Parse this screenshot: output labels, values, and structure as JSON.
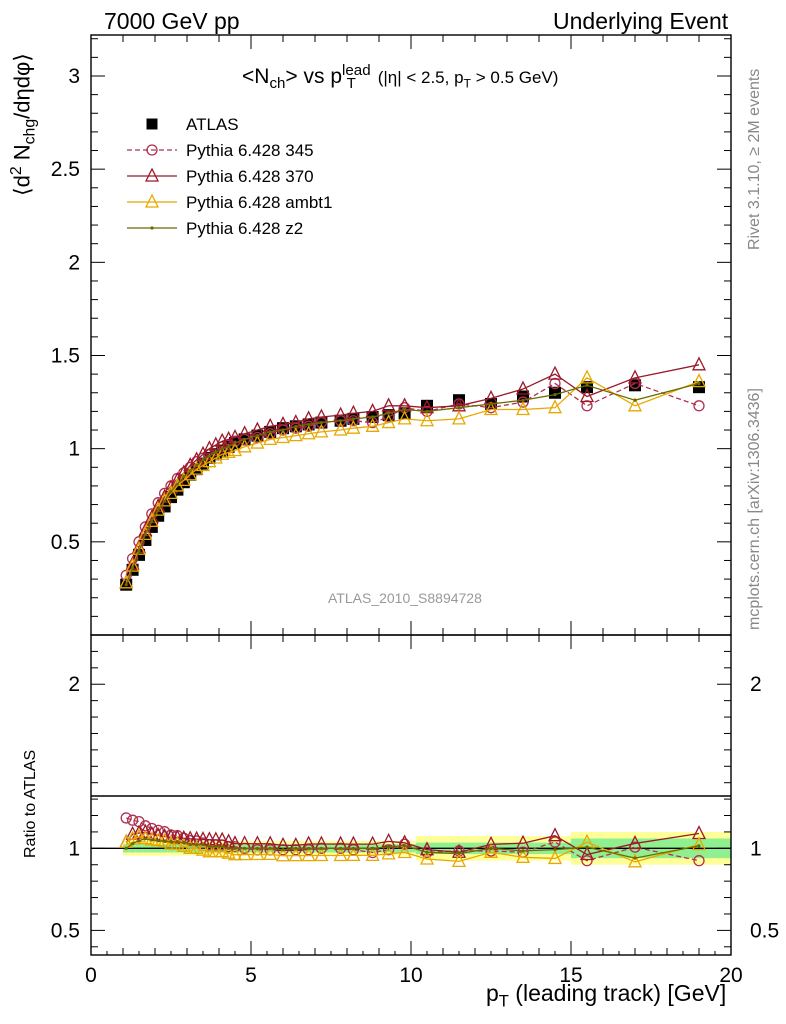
{
  "header": {
    "left": "7000 GeV pp",
    "right": "Underlying Event",
    "side_top": "Rivet 3.1.10, ≥ 2M events",
    "side_bottom": "mcplots.cern.ch [arXiv:1306.3436]"
  },
  "chart_data": [
    {
      "type": "scatter",
      "title_parts": {
        "a": "<N",
        "a_sub": "ch",
        "b": "> vs p",
        "b_sup": "lead",
        "b_sub": "T",
        "cut": "(|η| < 2.5, p",
        "cut_sub": "T",
        "cut_end": " > 0.5 GeV)"
      },
      "ylabel_parts": {
        "a": "⟨d",
        "a_sup": "2",
        "b": " N",
        "b_sub": "chg",
        "c": "/dηdφ⟩"
      },
      "xlabel_parts": {
        "a": "p",
        "a_sub": "T",
        "b": " (leading track) [GeV]"
      },
      "analysis_label": "ATLAS_2010_S8894728",
      "xlim": [
        0,
        20
      ],
      "ylim": [
        0,
        3.22
      ],
      "xticks": [
        "0",
        "5",
        "10",
        "15",
        "20"
      ],
      "yticks": [
        "0.5",
        "1",
        "1.5",
        "2",
        "2.5",
        "3"
      ],
      "x": [
        1.1,
        1.3,
        1.5,
        1.7,
        1.9,
        2.1,
        2.3,
        2.5,
        2.7,
        2.9,
        3.1,
        3.3,
        3.5,
        3.7,
        3.9,
        4.1,
        4.3,
        4.5,
        4.8,
        5.2,
        5.6,
        6.0,
        6.4,
        6.8,
        7.2,
        7.8,
        8.2,
        8.8,
        9.3,
        9.8,
        10.5,
        11.5,
        12.5,
        13.5,
        14.5,
        15.5,
        17.0,
        19.0
      ],
      "legend_position": "top-left",
      "series": [
        {
          "name": "ATLAS",
          "color": "#000000",
          "marker": "square",
          "y": [
            0.27,
            0.35,
            0.43,
            0.51,
            0.58,
            0.64,
            0.69,
            0.74,
            0.78,
            0.82,
            0.86,
            0.89,
            0.92,
            0.95,
            0.97,
            0.99,
            1.01,
            1.03,
            1.05,
            1.07,
            1.09,
            1.11,
            1.12,
            1.13,
            1.14,
            1.15,
            1.16,
            1.17,
            1.18,
            1.19,
            1.23,
            1.26,
            1.24,
            1.28,
            1.3,
            1.33,
            1.34,
            1.33
          ]
        },
        {
          "name": "Pythia 6.428 345",
          "color": "#b03050",
          "marker": "circle",
          "dashed": true,
          "y": [
            0.32,
            0.41,
            0.5,
            0.58,
            0.65,
            0.71,
            0.76,
            0.8,
            0.84,
            0.87,
            0.9,
            0.93,
            0.95,
            0.97,
            0.99,
            1.01,
            1.02,
            1.04,
            1.05,
            1.06,
            1.08,
            1.1,
            1.11,
            1.12,
            1.14,
            1.15,
            1.15,
            1.14,
            1.17,
            1.22,
            1.2,
            1.24,
            1.22,
            1.25,
            1.35,
            1.23,
            1.35,
            1.23
          ]
        },
        {
          "name": "Pythia 6.428 370",
          "color": "#9a1a2a",
          "marker": "triangle",
          "y": [
            0.28,
            0.38,
            0.47,
            0.56,
            0.63,
            0.69,
            0.74,
            0.79,
            0.83,
            0.87,
            0.91,
            0.94,
            0.97,
            1.0,
            1.02,
            1.04,
            1.05,
            1.06,
            1.08,
            1.1,
            1.12,
            1.13,
            1.14,
            1.16,
            1.17,
            1.18,
            1.19,
            1.2,
            1.23,
            1.23,
            1.22,
            1.23,
            1.27,
            1.32,
            1.4,
            1.28,
            1.38,
            1.45
          ]
        },
        {
          "name": "Pythia 6.428 ambt1",
          "color": "#e8a800",
          "marker": "triangle",
          "y": [
            0.28,
            0.37,
            0.46,
            0.54,
            0.61,
            0.67,
            0.72,
            0.76,
            0.8,
            0.83,
            0.86,
            0.89,
            0.91,
            0.93,
            0.95,
            0.97,
            0.98,
            0.99,
            1.01,
            1.03,
            1.05,
            1.06,
            1.07,
            1.08,
            1.09,
            1.1,
            1.11,
            1.12,
            1.14,
            1.16,
            1.15,
            1.16,
            1.21,
            1.21,
            1.22,
            1.38,
            1.23,
            1.36
          ]
        },
        {
          "name": "Pythia 6.428 z2",
          "color": "#6b6b00",
          "marker": "dot",
          "y": [
            0.27,
            0.36,
            0.45,
            0.54,
            0.61,
            0.67,
            0.72,
            0.77,
            0.81,
            0.85,
            0.88,
            0.91,
            0.94,
            0.96,
            0.98,
            1.0,
            1.01,
            1.03,
            1.05,
            1.07,
            1.09,
            1.1,
            1.12,
            1.13,
            1.14,
            1.15,
            1.16,
            1.17,
            1.19,
            1.21,
            1.2,
            1.22,
            1.24,
            1.26,
            1.29,
            1.34,
            1.26,
            1.35
          ]
        }
      ]
    },
    {
      "type": "scatter",
      "ylabel": "Ratio to ATLAS",
      "xlim": [
        0,
        20
      ],
      "ylim": [
        0.35,
        2.3
      ],
      "yticks": [
        "0.5",
        "1",
        "2"
      ],
      "bands": {
        "inner_color": "#90f090",
        "outer_color": "#ffff99"
      }
    }
  ]
}
